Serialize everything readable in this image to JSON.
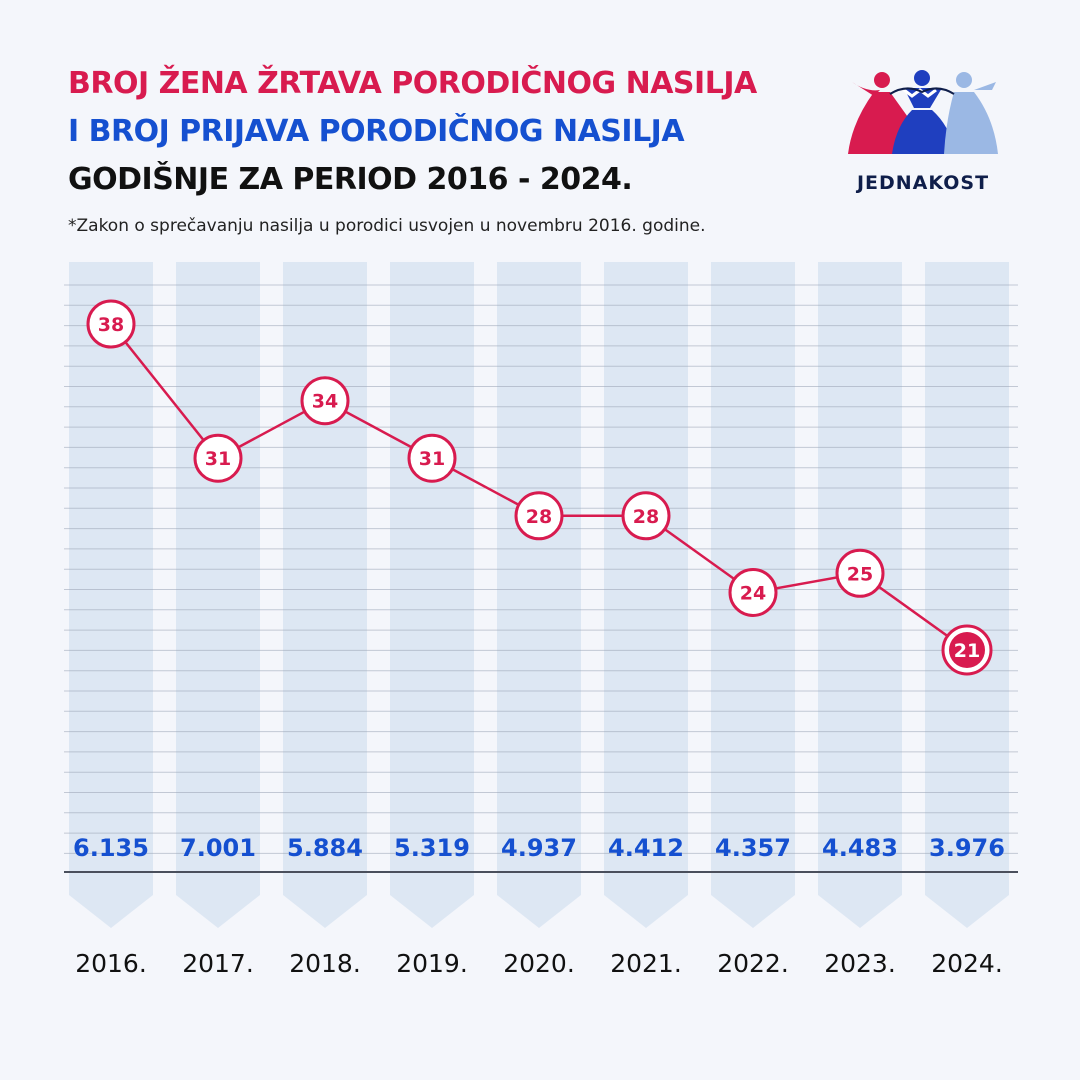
{
  "header": {
    "title_line1": "BROJ ŽENA ŽRTAVA PORODIČNOG NASILJA",
    "title_line2": "I BROJ PRIJAVA PORODIČNOG NASILJA",
    "title_line3": "GODIŠNJE ZA PERIOD 2016 - 2024.",
    "subtitle": "*Zakon o sprečavanju nasilja u porodici usvojen u novembru 2016. godine."
  },
  "logo": {
    "text": "JEDNAKOST"
  },
  "colors": {
    "accent_red": "#d81b4f",
    "accent_blue": "#1550d0",
    "column_fill": "#d6e1f0",
    "background": "#f4f6fb"
  },
  "chart_data": {
    "type": "line",
    "title": "BROJ ŽENA ŽRTAVA PORODIČNOG NASILJA I BROJ PRIJAVA PORODIČNOG NASILJA GODIŠNJE ZA PERIOD 2016 - 2024.",
    "categories": [
      "2016.",
      "2017.",
      "2018.",
      "2019.",
      "2020.",
      "2021.",
      "2022.",
      "2023.",
      "2024."
    ],
    "series": [
      {
        "name": "Broj žena žrtava porodičnog nasilja",
        "values": [
          38,
          31,
          34,
          31,
          28,
          28,
          24,
          25,
          21
        ]
      },
      {
        "name": "Broj prijava porodičnog nasilja",
        "values": [
          6135,
          7001,
          5884,
          5319,
          4937,
          4412,
          4357,
          4483,
          3976
        ]
      }
    ],
    "victim_labels": [
      "38",
      "31",
      "34",
      "31",
      "28",
      "28",
      "24",
      "25",
      "21"
    ],
    "report_labels": [
      "6.135",
      "7.001",
      "5.884",
      "5.319",
      "4.937",
      "4.412",
      "4.357",
      "4.483",
      "3.976"
    ],
    "ylim": [
      20,
      40
    ],
    "grid": true
  }
}
